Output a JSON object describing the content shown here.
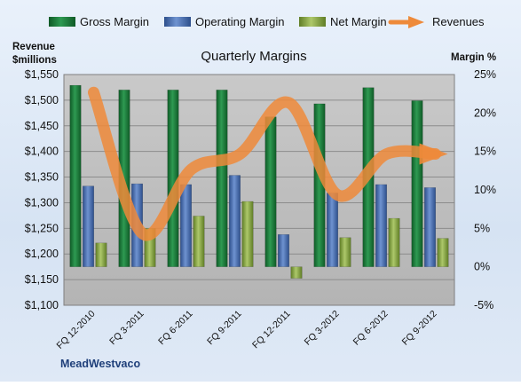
{
  "chart_data": {
    "type": "bar",
    "title": "Quarterly Margins",
    "company": "MeadWestvaco",
    "left_axis": {
      "title_lines": [
        "Revenue",
        "$millions"
      ],
      "range": [
        1100,
        1550
      ],
      "ticks": [
        "$1,100",
        "$1,150",
        "$1,200",
        "$1,250",
        "$1,300",
        "$1,350",
        "$1,400",
        "$1,450",
        "$1,500",
        "$1,550"
      ]
    },
    "right_axis": {
      "title": "Margin %",
      "range": [
        -5,
        25
      ],
      "ticks": [
        "-5%",
        "0%",
        "5%",
        "10%",
        "15%",
        "20%",
        "25%"
      ]
    },
    "categories": [
      "FQ 12-2010",
      "FQ 3-2011",
      "FQ 6-2011",
      "FQ 9-2011",
      "FQ 12-2011",
      "FQ 3-2012",
      "FQ 6-2012",
      "FQ 9-2012"
    ],
    "series": [
      {
        "name": "Gross Margin",
        "type": "bar",
        "axis": "right",
        "color": "#1f7a3c",
        "values": [
          23.6,
          23.0,
          23.0,
          23.0,
          19.5,
          21.2,
          23.3,
          21.6
        ]
      },
      {
        "name": "Operating Margin",
        "type": "bar",
        "axis": "right",
        "color": "#4a72b8",
        "values": [
          10.5,
          10.8,
          10.7,
          11.9,
          4.2,
          9.6,
          10.7,
          10.3
        ]
      },
      {
        "name": "Net Margin",
        "type": "bar",
        "axis": "right",
        "color": "#8fae4a",
        "values": [
          3.1,
          5.0,
          6.6,
          8.5,
          -1.5,
          3.8,
          6.3,
          3.7
        ]
      },
      {
        "name": "Revenues",
        "type": "line",
        "axis": "left",
        "color": "#ee8a3a",
        "values": [
          1515,
          1240,
          1365,
          1395,
          1495,
          1315,
          1395,
          1395
        ]
      }
    ],
    "grid": true,
    "legend": "top"
  }
}
